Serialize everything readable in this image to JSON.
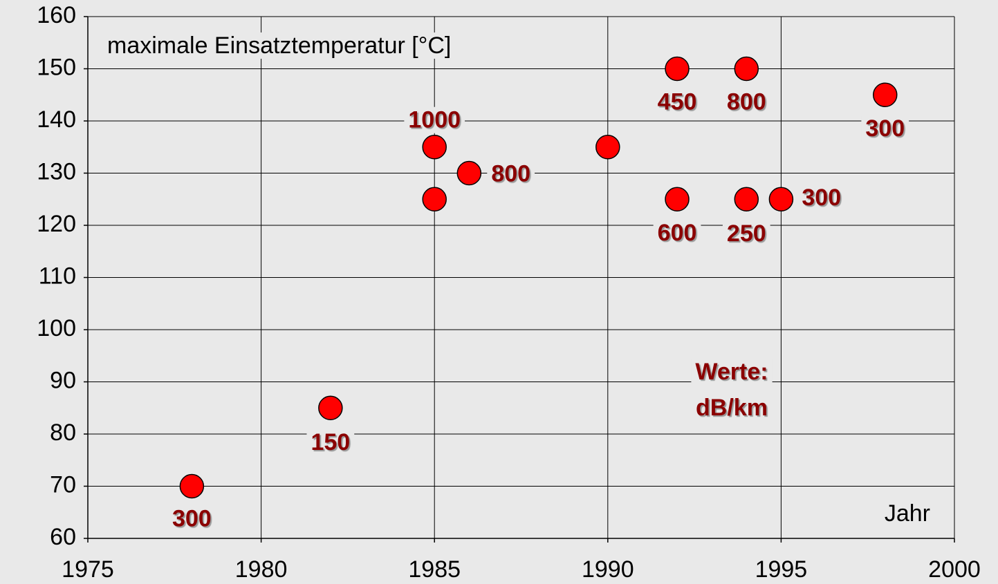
{
  "chart_data": {
    "type": "scatter",
    "y_label": "maximale Einsatztemperatur [°C]",
    "x_label": "Jahr",
    "annotation": [
      "Werte:",
      "dB/km"
    ],
    "x": [
      1978,
      1982,
      1985,
      1986,
      1985,
      1990,
      1992,
      1994,
      1998,
      1992,
      1994,
      1995
    ],
    "values": [
      70,
      85,
      135,
      130,
      125,
      135,
      150,
      150,
      145,
      125,
      125,
      125
    ],
    "point_labels": [
      300,
      150,
      1000,
      800,
      null,
      null,
      450,
      800,
      300,
      600,
      250,
      300
    ],
    "color": "#ff0000",
    "xlim": [
      1975,
      2000
    ],
    "xticks": [
      1975,
      1980,
      1985,
      1990,
      1995,
      2000
    ],
    "ylim": [
      60,
      160
    ],
    "yticks": [
      60,
      70,
      80,
      90,
      100,
      110,
      120,
      130,
      140,
      150,
      160
    ],
    "grid": true
  }
}
